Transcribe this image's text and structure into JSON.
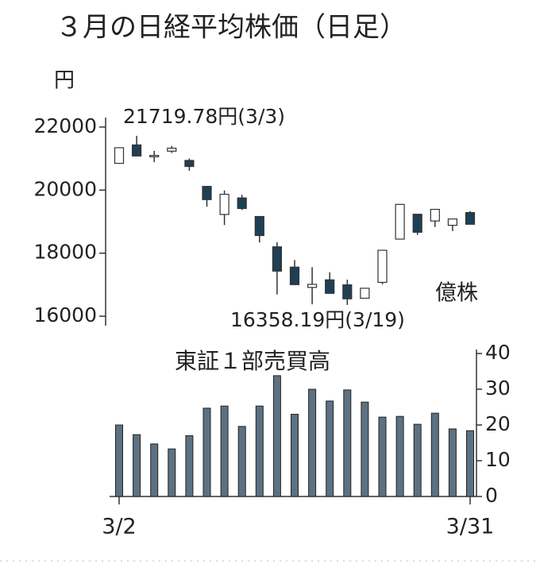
{
  "chart_data": [
    {
      "type": "candlestick",
      "title": "３月の日経平均株価（日足）",
      "y_label": "円",
      "annotations": [
        "21719.78円(3/3)",
        "16358.19円(3/19)"
      ],
      "open": [
        20849,
        21432,
        21056,
        21235,
        20940,
        20117,
        19227,
        19752,
        19163,
        18200,
        17557,
        16914,
        17154,
        16995,
        16570,
        17074,
        18446,
        19234,
        19021,
        18884,
        19287
      ],
      "high": [
        21344,
        21719.78,
        21246,
        21399,
        21001,
        20117,
        19985,
        19849,
        19165,
        18350,
        17785,
        17557,
        17396,
        17160,
        16887,
        18100,
        19564,
        19240,
        19389,
        19084,
        19336
      ],
      "low": [
        20834,
        21082,
        20885,
        21177,
        20613,
        19472,
        18891,
        19369,
        18339,
        16690,
        17002,
        16378,
        16717,
        16358.19,
        16570,
        17013,
        18446,
        18578,
        18832,
        18700,
        18917
      ],
      "close": [
        21344,
        21082,
        21100,
        21329,
        20749,
        19698,
        19867,
        19416,
        18559,
        17431,
        17002,
        17011,
        16726,
        16552,
        16887,
        18092,
        19546,
        18664,
        19389,
        19084,
        18917
      ],
      "up_color": "#ffffff",
      "down_color": "#1f3f55",
      "ylim": [
        15700,
        22300
      ],
      "yticks": [
        16000,
        18000,
        20000,
        22000
      ]
    },
    {
      "type": "bar",
      "title": "東証１部売買高",
      "y_label": "億株",
      "categories": [
        "3/2",
        null,
        null,
        null,
        null,
        null,
        null,
        null,
        null,
        null,
        null,
        null,
        null,
        null,
        null,
        null,
        null,
        null,
        null,
        null,
        "3/31"
      ],
      "values": [
        20,
        17.3,
        14.7,
        13.3,
        17,
        24.7,
        25.3,
        19.6,
        25.3,
        33.8,
        23,
        30,
        26.7,
        29.8,
        26.4,
        22.2,
        22.4,
        20.2,
        23.3,
        18.9,
        18.4
      ],
      "color": "#5d7183",
      "ylim": [
        0,
        40
      ],
      "yticks": [
        0,
        10,
        20,
        30,
        40
      ]
    }
  ]
}
